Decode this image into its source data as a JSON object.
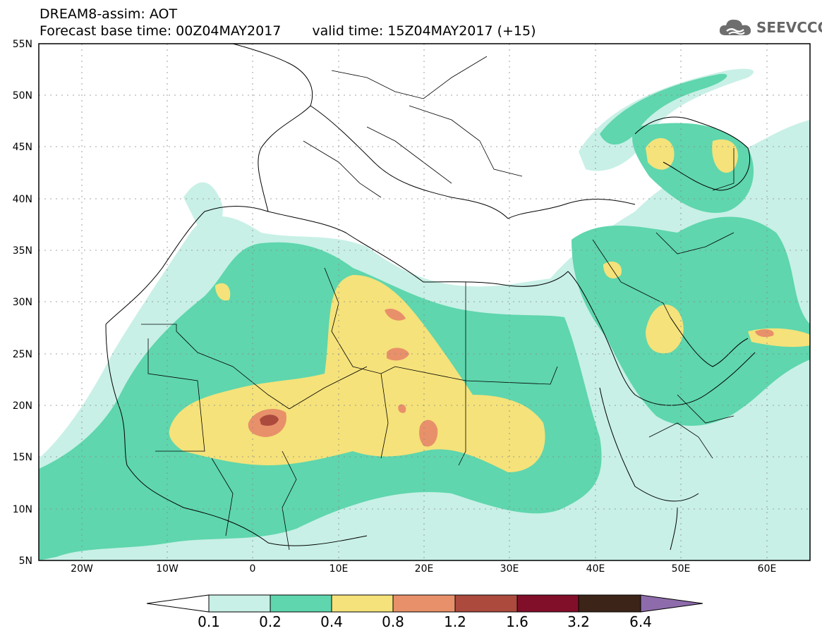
{
  "header": {
    "title_line1": "DREAM8-assim: AOT",
    "base_time": "Forecast base time: 00Z04MAY2017",
    "valid_time": "valid time: 15Z04MAY2017 (+15)"
  },
  "logo": {
    "text": "SEEVCCC",
    "icon": "cloud-icon"
  },
  "map": {
    "lat_labels": [
      "55N",
      "50N",
      "45N",
      "40N",
      "35N",
      "30N",
      "25N",
      "20N",
      "15N",
      "10N",
      "5N"
    ],
    "lon_labels": [
      "20W",
      "10W",
      "0",
      "10E",
      "20E",
      "30E",
      "40E",
      "50E",
      "60E"
    ]
  },
  "colorbar": {
    "labels": [
      "0.1",
      "0.2",
      "0.4",
      "0.8",
      "1.2",
      "1.6",
      "3.2",
      "6.4"
    ],
    "colors": [
      "#ffffff",
      "#c8f0e6",
      "#5fd6ad",
      "#f5e27a",
      "#e8906a",
      "#ac4a3e",
      "#820f2a",
      "#3c2418",
      "#8e6cac"
    ]
  },
  "colors": {
    "level_02": "#c8f0e6",
    "level_04": "#5fd6ad",
    "level_08": "#f5e27a",
    "level_12": "#e8906a",
    "level_16": "#ac4a3e"
  }
}
